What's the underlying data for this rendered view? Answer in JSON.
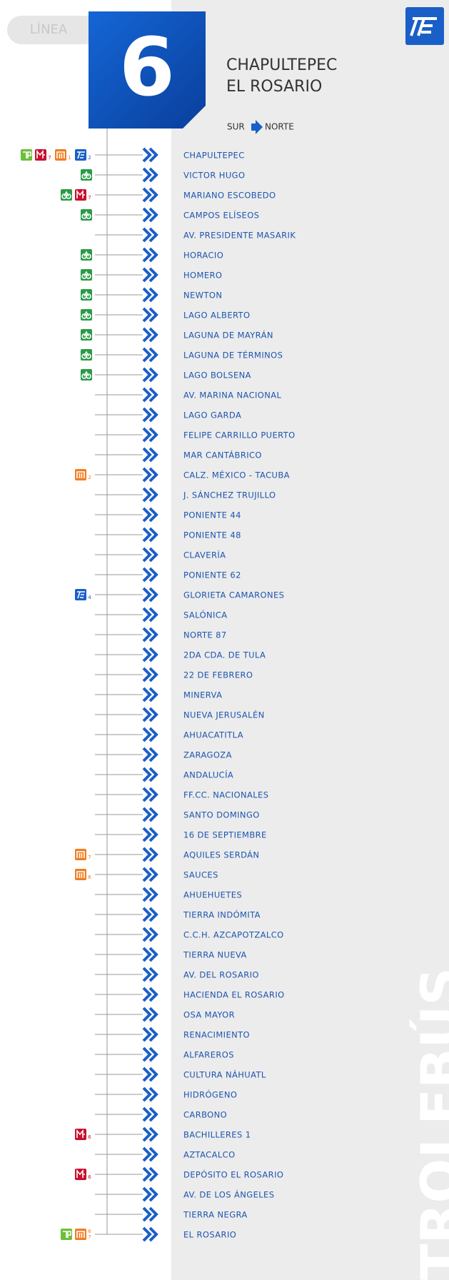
{
  "header": {
    "line_label": "LÍNEA",
    "line_number": "6",
    "route": [
      "CHAPULTEPEC",
      "EL ROSARIO"
    ],
    "direction": {
      "from": "SUR",
      "to": "NORTE"
    }
  },
  "brand": "TROLEBÚS",
  "stations": [
    {
      "name": "CHAPULTEPEC",
      "transfers": [
        {
          "system": "rtp"
        },
        {
          "system": "mb",
          "lines": [
            "7"
          ]
        },
        {
          "system": "metro",
          "lines": [
            "1"
          ]
        },
        {
          "system": "te",
          "lines": [
            "2"
          ]
        }
      ]
    },
    {
      "name": "VICTOR HUGO",
      "transfers": [
        {
          "system": "bike"
        }
      ]
    },
    {
      "name": "MARIANO ESCOBEDO",
      "transfers": [
        {
          "system": "bike"
        },
        {
          "system": "mb",
          "lines": [
            "7"
          ]
        }
      ]
    },
    {
      "name": "CAMPOS ELÍSEOS",
      "transfers": [
        {
          "system": "bike"
        }
      ]
    },
    {
      "name": "AV. PRESIDENTE MASARIK",
      "transfers": []
    },
    {
      "name": "HORACIO",
      "transfers": [
        {
          "system": "bike"
        }
      ]
    },
    {
      "name": "HOMERO",
      "transfers": [
        {
          "system": "bike"
        }
      ]
    },
    {
      "name": "NEWTON",
      "transfers": [
        {
          "system": "bike"
        }
      ]
    },
    {
      "name": "LAGO ALBERTO",
      "transfers": [
        {
          "system": "bike"
        }
      ]
    },
    {
      "name": "LAGUNA DE MAYRÁN",
      "transfers": [
        {
          "system": "bike"
        }
      ]
    },
    {
      "name": "LAGUNA DE TÉRMINOS",
      "transfers": [
        {
          "system": "bike"
        }
      ]
    },
    {
      "name": "LAGO BOLSENA",
      "transfers": [
        {
          "system": "bike"
        }
      ]
    },
    {
      "name": "AV. MARINA NACIONAL",
      "transfers": []
    },
    {
      "name": "LAGO GARDA",
      "transfers": []
    },
    {
      "name": "FELIPE CARRILLO PUERTO",
      "transfers": []
    },
    {
      "name": "MAR CANTÁBRICO",
      "transfers": []
    },
    {
      "name": "CALZ. MÉXICO - TACUBA",
      "transfers": [
        {
          "system": "metro",
          "lines": [
            "2"
          ]
        }
      ]
    },
    {
      "name": "J. SÁNCHEZ TRUJILLO",
      "transfers": []
    },
    {
      "name": "PONIENTE 44",
      "transfers": []
    },
    {
      "name": "PONIENTE 48",
      "transfers": []
    },
    {
      "name": "CLAVERÍA",
      "transfers": []
    },
    {
      "name": "PONIENTE 62",
      "transfers": []
    },
    {
      "name": "GLORIETA CAMARONES",
      "transfers": [
        {
          "system": "te",
          "lines": [
            "4"
          ]
        }
      ]
    },
    {
      "name": "SALÓNICA",
      "transfers": []
    },
    {
      "name": "NORTE 87",
      "transfers": []
    },
    {
      "name": "2DA CDA. DE TULA",
      "transfers": []
    },
    {
      "name": "22 DE FEBRERO",
      "transfers": []
    },
    {
      "name": "MINERVA",
      "transfers": []
    },
    {
      "name": "NUEVA JERUSALÉN",
      "transfers": []
    },
    {
      "name": "AHUACATITLA",
      "transfers": []
    },
    {
      "name": "ZARAGOZA",
      "transfers": []
    },
    {
      "name": "ANDALUCÍA",
      "transfers": []
    },
    {
      "name": "FF.CC. NACIONALES",
      "transfers": []
    },
    {
      "name": "SANTO DOMINGO",
      "transfers": []
    },
    {
      "name": "16 DE SEPTIEMBRE",
      "transfers": []
    },
    {
      "name": "AQUILES SERDÁN",
      "transfers": [
        {
          "system": "metro",
          "lines": [
            "7"
          ]
        }
      ]
    },
    {
      "name": "SAUCES",
      "transfers": [
        {
          "system": "metro",
          "lines": [
            "6"
          ]
        }
      ]
    },
    {
      "name": "AHUEHUETES",
      "transfers": []
    },
    {
      "name": "TIERRA INDÓMITA",
      "transfers": []
    },
    {
      "name": "C.C.H. AZCAPOTZALCO",
      "transfers": []
    },
    {
      "name": "TIERRA NUEVA",
      "transfers": []
    },
    {
      "name": "AV. DEL ROSARIO",
      "transfers": []
    },
    {
      "name": "HACIENDA EL ROSARIO",
      "transfers": []
    },
    {
      "name": "OSA MAYOR",
      "transfers": []
    },
    {
      "name": "RENACIMIENTO",
      "transfers": []
    },
    {
      "name": "ALFAREROS",
      "transfers": []
    },
    {
      "name": "CULTURA NÁHUATL",
      "transfers": []
    },
    {
      "name": "HIDRÓGENO",
      "transfers": []
    },
    {
      "name": "CARBONO",
      "transfers": []
    },
    {
      "name": "BACHILLERES 1",
      "transfers": [
        {
          "system": "mb",
          "lines": [
            "6"
          ]
        }
      ]
    },
    {
      "name": "AZTACALCO",
      "transfers": []
    },
    {
      "name": "DEPÓSITO EL ROSARIO",
      "transfers": [
        {
          "system": "mb",
          "lines": [
            "6"
          ]
        }
      ]
    },
    {
      "name": "AV. DE LOS ÁNGELES",
      "transfers": []
    },
    {
      "name": "TIERRA NEGRA",
      "transfers": []
    },
    {
      "name": "EL ROSARIO",
      "transfers": [
        {
          "system": "rtp"
        },
        {
          "system": "metro",
          "lines": [
            "6",
            "7"
          ]
        }
      ]
    }
  ]
}
